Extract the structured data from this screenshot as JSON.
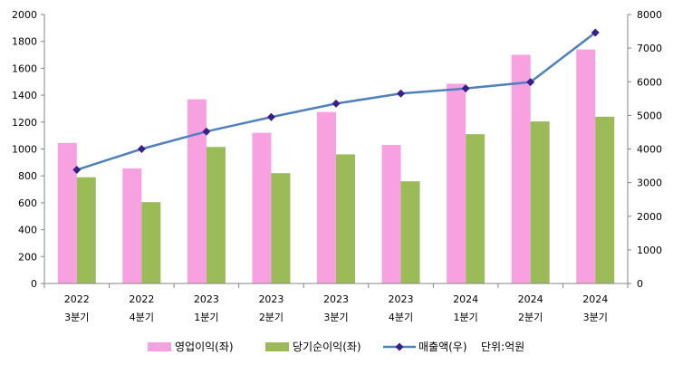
{
  "chart_data": {
    "type": "bar",
    "categories": [
      {
        "year": "2022",
        "quarter": "3분기"
      },
      {
        "year": "2022",
        "quarter": "4분기"
      },
      {
        "year": "2023",
        "quarter": "1분기"
      },
      {
        "year": "2023",
        "quarter": "2분기"
      },
      {
        "year": "2023",
        "quarter": "3분기"
      },
      {
        "year": "2023",
        "quarter": "4분기"
      },
      {
        "year": "2024",
        "quarter": "1분기"
      },
      {
        "year": "2024",
        "quarter": "2분기"
      },
      {
        "year": "2024",
        "quarter": "3분기"
      }
    ],
    "series": [
      {
        "name": "영업이익(좌)",
        "type": "bar",
        "axis": "left",
        "color": "#f7a1e0",
        "values": [
          1045,
          855,
          1370,
          1120,
          1275,
          1030,
          1485,
          1700,
          1740
        ]
      },
      {
        "name": "당기순이익(좌)",
        "type": "bar",
        "axis": "left",
        "color": "#9bbb59",
        "values": [
          790,
          605,
          1015,
          820,
          960,
          760,
          1110,
          1205,
          1240
        ]
      },
      {
        "name": "매출액(우)",
        "type": "line",
        "axis": "right",
        "color": "#4f81bd",
        "marker_color": "#3a1e8c",
        "values": [
          3380,
          4000,
          4520,
          4950,
          5350,
          5650,
          5800,
          5990,
          7460
        ]
      }
    ],
    "left_axis": {
      "min": 0,
      "max": 2000,
      "step": 200
    },
    "right_axis": {
      "min": 0,
      "max": 8000,
      "step": 1000
    },
    "unit_note": "단위:억원",
    "grid": false,
    "legend_position": "bottom"
  }
}
